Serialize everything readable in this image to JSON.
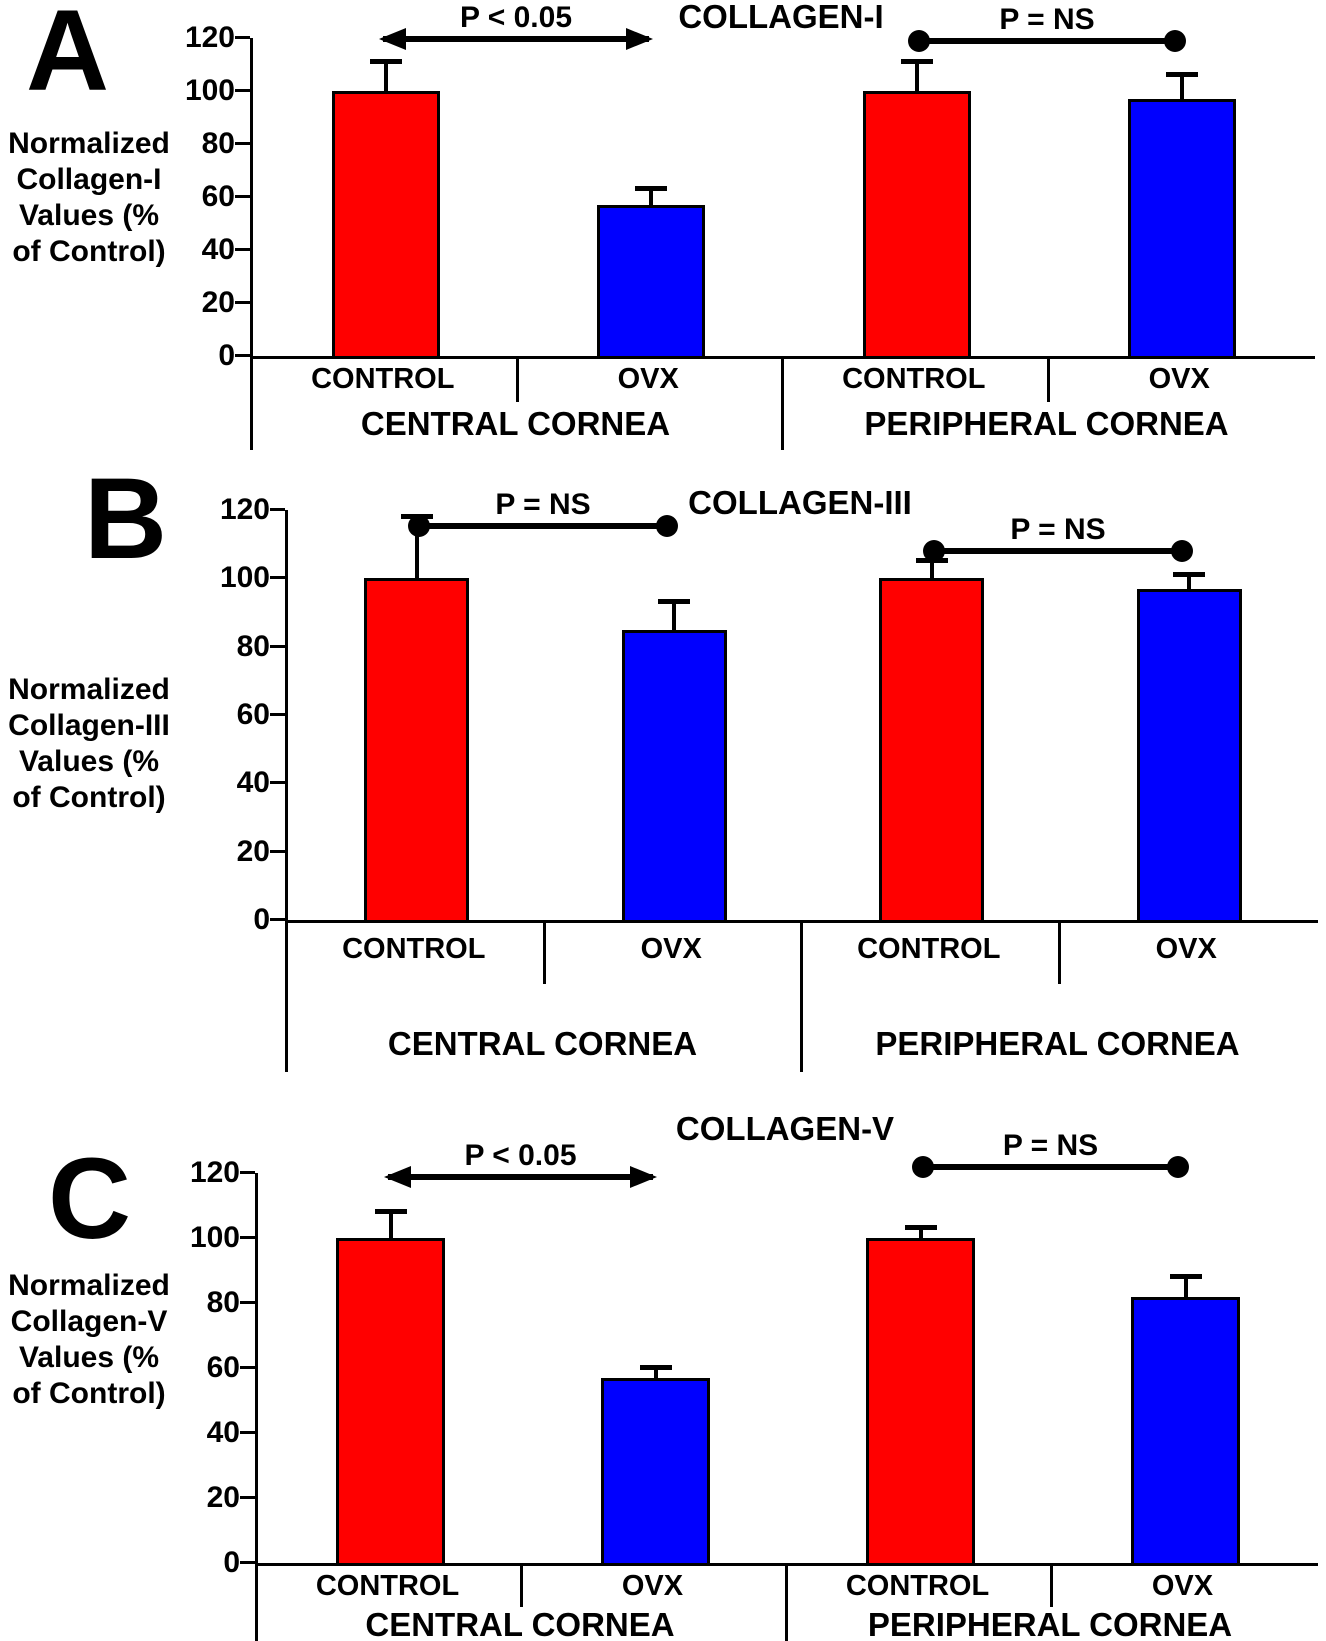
{
  "chart_data": [
    {
      "type": "bar",
      "panel_label": "A",
      "title": "COLLAGEN-I",
      "ylabel": "Normalized\nCollagen-I\nValues (%\nof Control)",
      "ylim": [
        0,
        120
      ],
      "yticks": [
        0,
        20,
        40,
        60,
        80,
        100,
        120
      ],
      "categories": [
        "CONTROL",
        "OVX",
        "CONTROL",
        "OVX"
      ],
      "group_labels": [
        "CENTRAL CORNEA",
        "PERIPHERAL CORNEA"
      ],
      "series": [
        {
          "name": "Normalized Collagen-I (% of Control)",
          "values": [
            100,
            57,
            100,
            97
          ],
          "errors_up": [
            11,
            6,
            11,
            9
          ]
        }
      ],
      "bar_colors": [
        "#ff0000",
        "#0000ff",
        "#ff0000",
        "#0000ff"
      ],
      "annotations": [
        {
          "text": "P < 0.05",
          "style": "double-arrow",
          "over_group": "CENTRAL CORNEA"
        },
        {
          "text": "P = NS",
          "style": "dot-line",
          "over_group": "PERIPHERAL CORNEA"
        }
      ],
      "legend": "none",
      "grid": false
    },
    {
      "type": "bar",
      "panel_label": "B",
      "title": "COLLAGEN-III",
      "ylabel": "Normalized\nCollagen-III\nValues (%\nof Control)",
      "ylim": [
        0,
        120
      ],
      "yticks": [
        0,
        20,
        40,
        60,
        80,
        100,
        120
      ],
      "categories": [
        "CONTROL",
        "OVX",
        "CONTROL",
        "OVX"
      ],
      "group_labels": [
        "CENTRAL CORNEA",
        "PERIPHERAL CORNEA"
      ],
      "series": [
        {
          "name": "Normalized Collagen-III (% of Control)",
          "values": [
            100,
            85,
            100,
            97
          ],
          "errors_up": [
            18,
            8,
            5,
            4
          ]
        }
      ],
      "bar_colors": [
        "#ff0000",
        "#0000ff",
        "#ff0000",
        "#0000ff"
      ],
      "annotations": [
        {
          "text": "P = NS",
          "style": "dot-line",
          "over_group": "CENTRAL CORNEA"
        },
        {
          "text": "P = NS",
          "style": "dot-line",
          "over_group": "PERIPHERAL CORNEA"
        }
      ],
      "legend": "none",
      "grid": false
    },
    {
      "type": "bar",
      "panel_label": "C",
      "title": "COLLAGEN-V",
      "ylabel": "Normalized\nCollagen-V\nValues (%\nof Control)",
      "ylim": [
        0,
        120
      ],
      "yticks": [
        0,
        20,
        40,
        60,
        80,
        100,
        120
      ],
      "categories": [
        "CONTROL",
        "OVX",
        "CONTROL",
        "OVX"
      ],
      "group_labels": [
        "CENTRAL CORNEA",
        "PERIPHERAL CORNEA"
      ],
      "series": [
        {
          "name": "Normalized Collagen-V (% of Control)",
          "values": [
            100,
            57,
            100,
            82
          ],
          "errors_up": [
            8,
            3,
            3,
            6
          ]
        }
      ],
      "bar_colors": [
        "#ff0000",
        "#0000ff",
        "#ff0000",
        "#0000ff"
      ],
      "annotations": [
        {
          "text": "P < 0.05",
          "style": "double-arrow",
          "over_group": "CENTRAL CORNEA"
        },
        {
          "text": "P = NS",
          "style": "dot-line",
          "over_group": "PERIPHERAL CORNEA"
        }
      ],
      "legend": "none",
      "grid": false
    }
  ],
  "colors": {
    "control_bar": "#ff0000",
    "ovx_bar": "#0000ff",
    "axis": "#000000",
    "background": "#ffffff"
  }
}
